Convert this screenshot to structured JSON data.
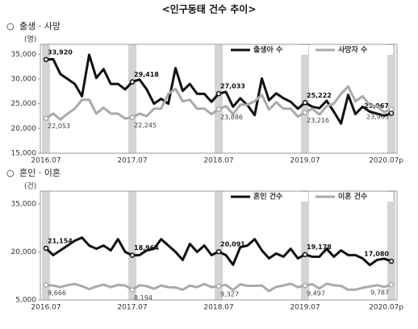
{
  "title": "<인구동태 건수 추이>",
  "chart_data": [
    {
      "type": "line",
      "title": "출생 · 사망",
      "unit": "(명)",
      "categories": [
        "2016.07",
        null,
        null,
        null,
        null,
        null,
        null,
        null,
        null,
        null,
        null,
        null,
        "2017.07",
        null,
        null,
        null,
        null,
        null,
        null,
        null,
        null,
        null,
        null,
        null,
        "2018.07",
        null,
        null,
        null,
        null,
        null,
        null,
        null,
        null,
        null,
        null,
        null,
        "2019.07",
        null,
        null,
        null,
        null,
        null,
        null,
        null,
        null,
        null,
        null,
        null,
        "2020.07p"
      ],
      "ylim": [
        15000,
        37000
      ],
      "yticks": [
        {
          "value": 15000,
          "label": "15,000"
        },
        {
          "value": 20000,
          "label": "20,000"
        },
        {
          "value": 25000,
          "label": "25,000"
        },
        {
          "value": 30000,
          "label": "30,000"
        },
        {
          "value": 35000,
          "label": "35,000"
        }
      ],
      "grid": false,
      "legend": "upper right",
      "series": [
        {
          "name": "출생아 수",
          "color": "#111111",
          "values": [
            33920,
            34000,
            31000,
            30000,
            29000,
            26500,
            34900,
            30200,
            32000,
            29000,
            29000,
            27900,
            29418,
            29900,
            27900,
            25000,
            26000,
            25000,
            32200,
            27600,
            29000,
            27000,
            27000,
            25400,
            27033,
            27400,
            24400,
            26100,
            24700,
            22700,
            30100,
            25700,
            27100,
            26100,
            25400,
            24000,
            25222,
            24400,
            24100,
            25600,
            23400,
            21000,
            26800,
            22900,
            24400,
            23400,
            23000,
            22600,
            23067
          ],
          "value_labels": [
            "33,920",
            null,
            null,
            null,
            null,
            null,
            null,
            null,
            null,
            null,
            null,
            null,
            "29,418",
            null,
            null,
            null,
            null,
            null,
            null,
            null,
            null,
            null,
            null,
            null,
            "27,033",
            null,
            null,
            null,
            null,
            null,
            null,
            null,
            null,
            null,
            null,
            null,
            "25,222",
            null,
            null,
            null,
            null,
            null,
            null,
            null,
            null,
            null,
            null,
            null,
            "23,067"
          ]
        },
        {
          "name": "사망자 수",
          "color": "#aaaaaa",
          "values": [
            22053,
            23000,
            21800,
            23000,
            24000,
            25800,
            25800,
            23000,
            24200,
            23000,
            23000,
            22000,
            22245,
            23000,
            22500,
            24000,
            24000,
            27000,
            28000,
            25500,
            25800,
            24000,
            24000,
            22900,
            23886,
            24500,
            22900,
            24800,
            24800,
            25500,
            26800,
            23800,
            25300,
            24000,
            24000,
            22400,
            23216,
            24000,
            22800,
            24500,
            25000,
            27000,
            28500,
            25500,
            26500,
            24700,
            24500,
            23300,
            23963
          ],
          "value_labels": [
            "22,053",
            null,
            null,
            null,
            null,
            null,
            null,
            null,
            null,
            null,
            null,
            null,
            "22,245",
            null,
            null,
            null,
            null,
            null,
            null,
            null,
            null,
            null,
            null,
            null,
            "23,886",
            null,
            null,
            null,
            null,
            null,
            null,
            null,
            null,
            null,
            null,
            null,
            "23,216",
            null,
            null,
            null,
            null,
            null,
            null,
            null,
            null,
            null,
            null,
            null,
            "23,963"
          ]
        }
      ]
    },
    {
      "type": "line",
      "title": "혼인 · 이혼",
      "unit": "(건)",
      "categories": [
        "2016.07",
        null,
        null,
        null,
        null,
        null,
        null,
        null,
        null,
        null,
        null,
        null,
        "2017.07",
        null,
        null,
        null,
        null,
        null,
        null,
        null,
        null,
        null,
        null,
        null,
        "2018.07",
        null,
        null,
        null,
        null,
        null,
        null,
        null,
        null,
        null,
        null,
        null,
        "2019.07",
        null,
        null,
        null,
        null,
        null,
        null,
        null,
        null,
        null,
        null,
        null,
        "2020.07p"
      ],
      "ylim": [
        5000,
        39000
      ],
      "yticks": [
        {
          "value": 5000,
          "label": "5,000"
        },
        {
          "value": 20000,
          "label": "20,000"
        },
        {
          "value": 35000,
          "label": "35,000"
        }
      ],
      "grid": false,
      "legend": "upper right",
      "series": [
        {
          "name": "혼인 건수",
          "color": "#111111",
          "values": [
            21154,
            19000,
            20500,
            22000,
            23500,
            24500,
            22000,
            21000,
            22000,
            20500,
            24000,
            20000,
            18964,
            19000,
            20500,
            21000,
            24000,
            22000,
            20000,
            17500,
            22500,
            20000,
            22000,
            19000,
            20091,
            19000,
            16000,
            21500,
            22000,
            24000,
            20500,
            18000,
            19500,
            18500,
            21000,
            18000,
            19178,
            18500,
            18500,
            21000,
            18500,
            20500,
            19000,
            19000,
            18000,
            15900,
            17500,
            17900,
            17080
          ],
          "value_labels": [
            "21,154",
            null,
            null,
            null,
            null,
            null,
            null,
            null,
            null,
            null,
            null,
            null,
            "18,964",
            null,
            null,
            null,
            null,
            null,
            null,
            null,
            null,
            null,
            null,
            null,
            "20,091",
            null,
            null,
            null,
            null,
            null,
            null,
            null,
            null,
            null,
            null,
            null,
            "19,178",
            null,
            null,
            null,
            null,
            null,
            null,
            null,
            null,
            null,
            null,
            null,
            "17,080"
          ]
        },
        {
          "name": "이혼 건수",
          "color": "#aaaaaa",
          "values": [
            9666,
            9500,
            9000,
            9600,
            10000,
            9300,
            8400,
            9200,
            9800,
            9000,
            9700,
            9500,
            8194,
            9600,
            9300,
            8500,
            9500,
            9000,
            8900,
            8200,
            9500,
            9000,
            10000,
            9000,
            9327,
            9700,
            8100,
            9900,
            9400,
            9400,
            9500,
            7800,
            9100,
            9500,
            10100,
            9000,
            9497,
            9900,
            8600,
            10100,
            9600,
            9400,
            8200,
            8200,
            8800,
            9200,
            9600,
            9100,
            9787
          ],
          "value_labels": [
            "9,666",
            null,
            null,
            null,
            null,
            null,
            null,
            null,
            null,
            null,
            null,
            null,
            "8,194",
            null,
            null,
            null,
            null,
            null,
            null,
            null,
            null,
            null,
            null,
            null,
            "9,327",
            null,
            null,
            null,
            null,
            null,
            null,
            null,
            null,
            null,
            null,
            null,
            "9,497",
            null,
            null,
            null,
            null,
            null,
            null,
            null,
            null,
            null,
            null,
            null,
            "9,787"
          ]
        }
      ]
    }
  ]
}
